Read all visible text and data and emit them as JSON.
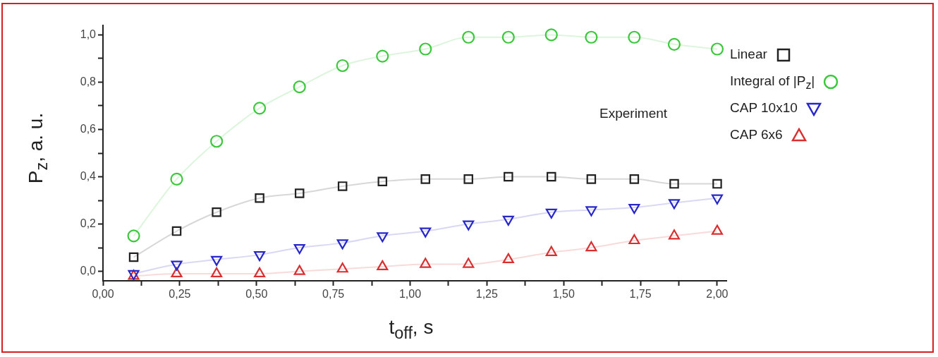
{
  "chart_data": {
    "type": "line",
    "xlabel": "t$_{off}$, s",
    "ylabel": "P$_{z}$, a. u.",
    "legend_title": "Experiment",
    "legend": "right",
    "grid": false,
    "x": [
      0.1,
      0.24,
      0.37,
      0.51,
      0.64,
      0.78,
      0.91,
      1.05,
      1.19,
      1.32,
      1.46,
      1.59,
      1.73,
      1.86,
      2.0
    ],
    "series": [
      {
        "name": "Linear",
        "color": "#222222",
        "marker": "square",
        "values": [
          0.06,
          0.17,
          0.25,
          0.31,
          0.33,
          0.36,
          0.38,
          0.39,
          0.39,
          0.4,
          0.4,
          0.39,
          0.39,
          0.37,
          0.37
        ]
      },
      {
        "name": "Integral of |P$_{z}$|",
        "color": "#3cc83c",
        "marker": "circle",
        "values": [
          0.15,
          0.39,
          0.55,
          0.69,
          0.78,
          0.87,
          0.91,
          0.94,
          0.99,
          0.99,
          1.0,
          0.99,
          0.99,
          0.96,
          0.94
        ]
      },
      {
        "name": "CAP 10x10",
        "color": "#2828c8",
        "marker": "triangle-down",
        "values": [
          -0.01,
          0.03,
          0.05,
          0.07,
          0.1,
          0.12,
          0.15,
          0.17,
          0.2,
          0.22,
          0.25,
          0.26,
          0.27,
          0.29,
          0.31
        ]
      },
      {
        "name": "CAP 6x6",
        "color": "#d83030",
        "marker": "triangle",
        "values": [
          -0.02,
          -0.01,
          -0.01,
          -0.01,
          0.0,
          0.01,
          0.02,
          0.03,
          0.03,
          0.05,
          0.08,
          0.1,
          0.13,
          0.15,
          0.17
        ]
      }
    ],
    "xlim": [
      0,
      2.03
    ],
    "ylim": [
      -0.04,
      1.04
    ],
    "xticks": [
      {
        "value": 0,
        "label": "0,00"
      },
      {
        "value": 0.125,
        "label": null
      },
      {
        "value": 0.25,
        "label": "0,25"
      },
      {
        "value": 0.375,
        "label": null
      },
      {
        "value": 0.5,
        "label": "0,50"
      },
      {
        "value": 0.625,
        "label": null
      },
      {
        "value": 0.75,
        "label": "0,75"
      },
      {
        "value": 0.875,
        "label": null
      },
      {
        "value": 1.0,
        "label": "1,00"
      },
      {
        "value": 1.125,
        "label": null
      },
      {
        "value": 1.25,
        "label": "1,25"
      },
      {
        "value": 1.375,
        "label": null
      },
      {
        "value": 1.5,
        "label": "1,50"
      },
      {
        "value": 1.625,
        "label": null
      },
      {
        "value": 1.75,
        "label": "1,75"
      },
      {
        "value": 1.875,
        "label": null
      },
      {
        "value": 2.0,
        "label": "2,00"
      }
    ],
    "yticks": [
      {
        "value": 0,
        "label": "0,0"
      },
      {
        "value": 0.1,
        "label": null
      },
      {
        "value": 0.2,
        "label": "0,2"
      },
      {
        "value": 0.3,
        "label": null
      },
      {
        "value": 0.4,
        "label": "0,4"
      },
      {
        "value": 0.5,
        "label": null
      },
      {
        "value": 0.6,
        "label": "0,6"
      },
      {
        "value": 0.7,
        "label": null
      },
      {
        "value": 0.8,
        "label": "0,8"
      },
      {
        "value": 0.9,
        "label": null
      },
      {
        "value": 1.0,
        "label": "1,0"
      }
    ]
  }
}
